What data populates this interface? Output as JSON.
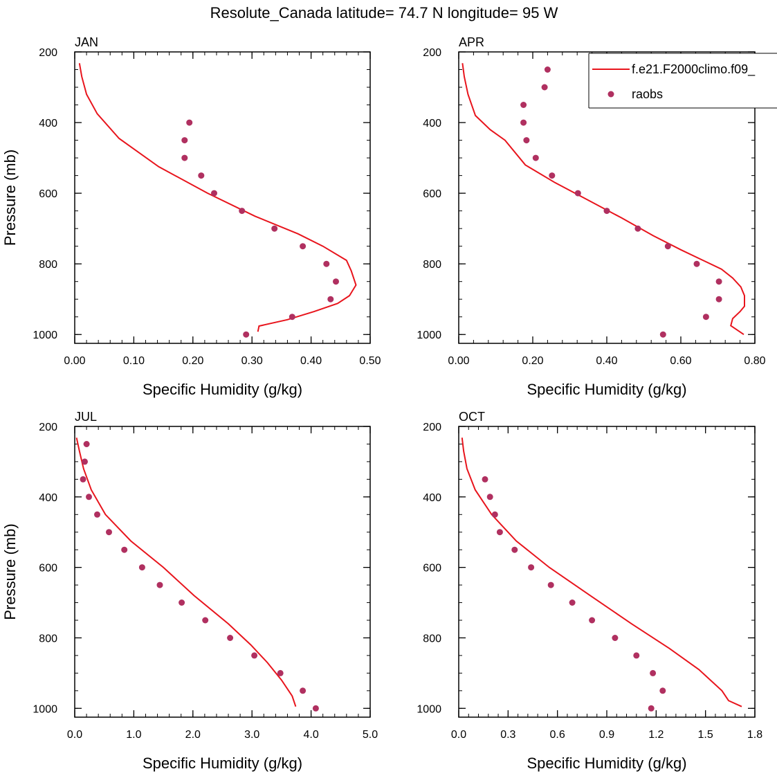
{
  "title": "Resolute_Canada  latitude= 74.7 N longitude= 95 W",
  "colors": {
    "model": "#e8141c",
    "obs": "#b03060",
    "axis": "#000000"
  },
  "legend": {
    "model_label": "f.e21.F2000climo.f09_",
    "obs_label": "raobs"
  },
  "chart_data": [
    {
      "type": "line+scatter",
      "panel": "JAN",
      "xlabel": "Specific Humidity (g/kg)",
      "ylabel": "Pressure (mb)",
      "xlim": [
        0,
        0.5
      ],
      "ylim": [
        200,
        1025
      ],
      "y_inverted": true,
      "xticks": [
        0,
        0.1,
        0.2,
        0.3,
        0.4,
        0.5
      ],
      "xtick_labels": [
        "0.00",
        "0.10",
        "0.20",
        "0.30",
        "0.40",
        "0.50"
      ],
      "yticks": [
        200,
        400,
        600,
        800,
        1000
      ],
      "ytick_labels": [
        "200",
        "400",
        "600",
        "800",
        "1000"
      ],
      "series": [
        {
          "name": "f.e21.F2000climo.f09_",
          "kind": "line",
          "x": [
            0.008,
            0.012,
            0.02,
            0.038,
            0.075,
            0.142,
            0.225,
            0.305,
            0.378,
            0.42,
            0.46,
            0.468,
            0.476,
            0.465,
            0.445,
            0.405,
            0.36,
            0.312,
            0.31
          ],
          "y": [
            232,
            270,
            320,
            375,
            445,
            525,
            600,
            665,
            715,
            750,
            790,
            820,
            860,
            890,
            912,
            935,
            958,
            976,
            992
          ]
        },
        {
          "name": "raobs",
          "kind": "scatter",
          "x": [
            0.194,
            0.186,
            0.186,
            0.214,
            0.236,
            0.283,
            0.338,
            0.386,
            0.426,
            0.442,
            0.433,
            0.368,
            0.29
          ],
          "y": [
            400,
            450,
            500,
            550,
            600,
            650,
            700,
            750,
            800,
            850,
            900,
            950,
            1000
          ]
        }
      ]
    },
    {
      "type": "line+scatter",
      "panel": "APR",
      "xlabel": "Specific Humidity (g/kg)",
      "ylabel": "",
      "xlim": [
        0,
        0.8
      ],
      "ylim": [
        200,
        1025
      ],
      "y_inverted": true,
      "xticks": [
        0,
        0.2,
        0.4,
        0.6,
        0.8
      ],
      "xtick_labels": [
        "0.00",
        "0.20",
        "0.40",
        "0.60",
        "0.80"
      ],
      "yticks": [
        200,
        400,
        600,
        800,
        1000
      ],
      "ytick_labels": [
        "200",
        "400",
        "600",
        "800",
        "1000"
      ],
      "series": [
        {
          "name": "f.e21.F2000climo.f09_",
          "kind": "line",
          "x": [
            0.01,
            0.015,
            0.025,
            0.045,
            0.085,
            0.125,
            0.18,
            0.26,
            0.35,
            0.44,
            0.525,
            0.6,
            0.66,
            0.71,
            0.74,
            0.762,
            0.772,
            0.772,
            0.76,
            0.74,
            0.735,
            0.77
          ],
          "y": [
            232,
            270,
            320,
            380,
            420,
            450,
            520,
            570,
            620,
            670,
            720,
            760,
            790,
            815,
            840,
            865,
            890,
            920,
            935,
            955,
            975,
            1000
          ]
        },
        {
          "name": "raobs",
          "kind": "scatter",
          "x": [
            0.24,
            0.232,
            0.175,
            0.175,
            0.183,
            0.208,
            0.252,
            0.322,
            0.4,
            0.484,
            0.565,
            0.643,
            0.703,
            0.703,
            0.668,
            0.552
          ],
          "y": [
            250,
            300,
            350,
            400,
            450,
            500,
            550,
            600,
            650,
            700,
            750,
            800,
            850,
            900,
            950,
            1000
          ]
        }
      ]
    },
    {
      "type": "line+scatter",
      "panel": "JUL",
      "xlabel": "Specific Humidity (g/kg)",
      "ylabel": "Pressure (mb)",
      "xlim": [
        0,
        5
      ],
      "ylim": [
        200,
        1025
      ],
      "y_inverted": true,
      "xticks": [
        0,
        1,
        2,
        3,
        4,
        5
      ],
      "xtick_labels": [
        "0.0",
        "1.0",
        "2.0",
        "3.0",
        "4.0",
        "5.0"
      ],
      "yticks": [
        200,
        400,
        600,
        800,
        1000
      ],
      "ytick_labels": [
        "200",
        "400",
        "600",
        "800",
        "1000"
      ],
      "series": [
        {
          "name": "f.e21.F2000climo.f09_",
          "kind": "line",
          "x": [
            0.03,
            0.08,
            0.15,
            0.28,
            0.52,
            0.95,
            1.5,
            2.02,
            2.6,
            2.98,
            3.26,
            3.5,
            3.68,
            3.74
          ],
          "y": [
            232,
            270,
            320,
            380,
            450,
            525,
            600,
            680,
            760,
            820,
            870,
            920,
            965,
            995
          ]
        },
        {
          "name": "raobs",
          "kind": "scatter",
          "x": [
            0.2,
            0.17,
            0.14,
            0.24,
            0.38,
            0.58,
            0.84,
            1.14,
            1.44,
            1.81,
            2.21,
            2.63,
            3.04,
            3.48,
            3.86,
            4.08
          ],
          "y": [
            250,
            300,
            350,
            400,
            450,
            500,
            550,
            600,
            650,
            700,
            750,
            800,
            850,
            900,
            950,
            1000
          ]
        }
      ]
    },
    {
      "type": "line+scatter",
      "panel": "OCT",
      "xlabel": "Specific Humidity (g/kg)",
      "ylabel": "",
      "xlim": [
        0,
        1.8
      ],
      "ylim": [
        200,
        1025
      ],
      "y_inverted": true,
      "xticks": [
        0,
        0.3,
        0.6,
        0.9,
        1.2,
        1.5,
        1.8
      ],
      "xtick_labels": [
        "0.0",
        "0.3",
        "0.6",
        "0.9",
        "1.2",
        "1.5",
        "1.8"
      ],
      "yticks": [
        200,
        400,
        600,
        800,
        1000
      ],
      "ytick_labels": [
        "200",
        "400",
        "600",
        "800",
        "1000"
      ],
      "series": [
        {
          "name": "f.e21.F2000climo.f09_",
          "kind": "line",
          "x": [
            0.02,
            0.03,
            0.05,
            0.1,
            0.2,
            0.35,
            0.55,
            0.8,
            1.05,
            1.28,
            1.46,
            1.6,
            1.64,
            1.72
          ],
          "y": [
            232,
            270,
            320,
            380,
            450,
            525,
            600,
            680,
            760,
            830,
            890,
            950,
            978,
            995
          ]
        },
        {
          "name": "raobs",
          "kind": "scatter",
          "x": [
            0.16,
            0.19,
            0.22,
            0.25,
            0.34,
            0.44,
            0.56,
            0.69,
            0.81,
            0.95,
            1.08,
            1.18,
            1.24,
            1.17
          ],
          "y": [
            350,
            400,
            450,
            500,
            550,
            600,
            650,
            700,
            750,
            800,
            850,
            900,
            950,
            1000
          ]
        }
      ]
    }
  ]
}
